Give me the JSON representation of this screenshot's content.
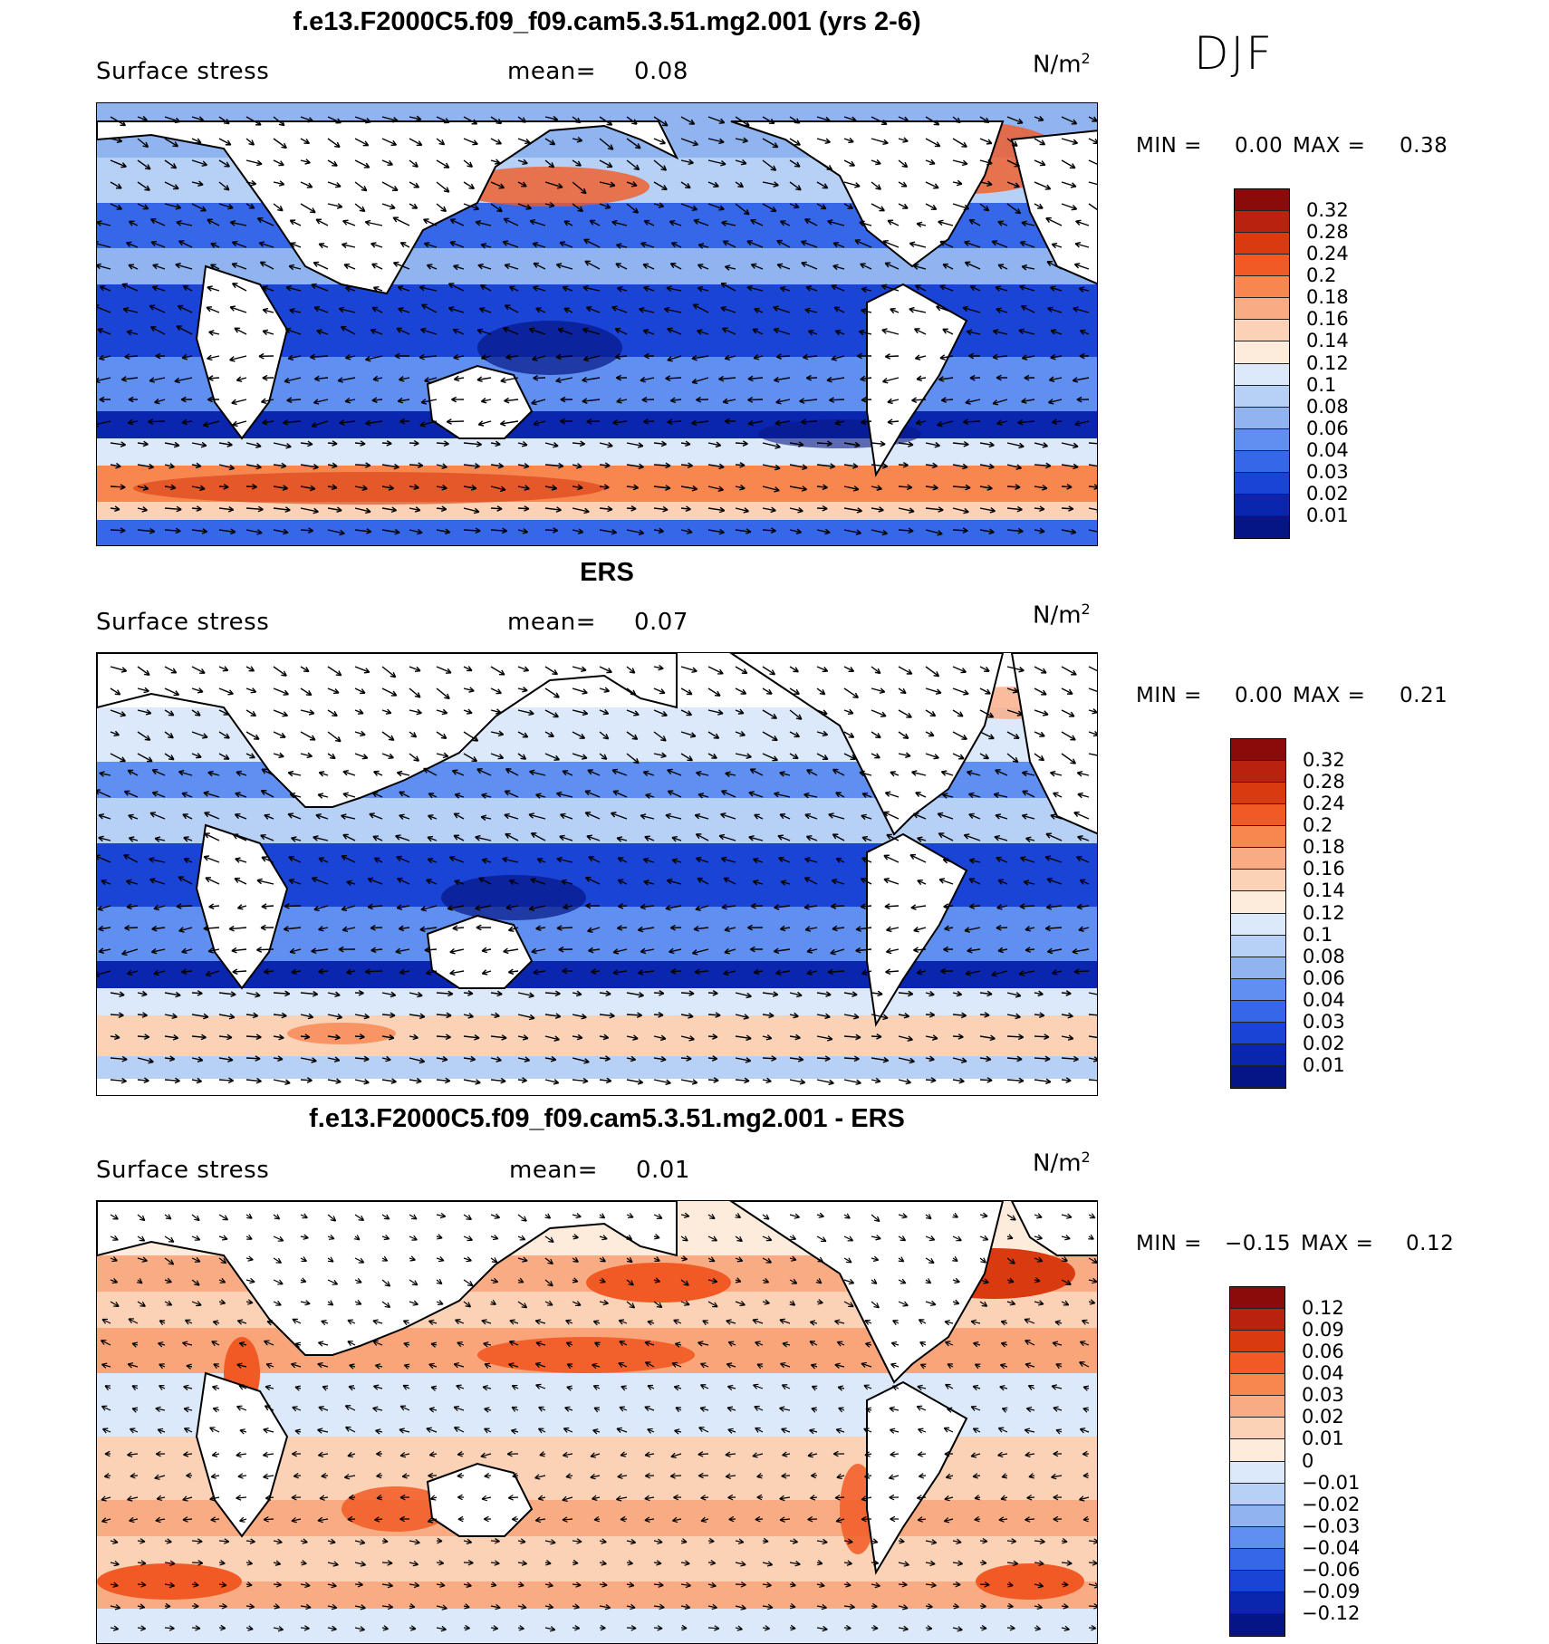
{
  "season": "DJF",
  "panels": [
    {
      "title": "f.e13.F2000C5.f09_f09.cam5.3.51.mg2.001 (yrs 2-6)",
      "variable": "Surface stress",
      "mean_label": "mean=",
      "mean_value": "0.08",
      "units_base": "N/m",
      "units_exp": "2",
      "min_label": "MIN =",
      "min_value": "0.00",
      "max_label": "MAX =",
      "max_value": "0.38",
      "colorbar_labels": [
        "0.32",
        "0.28",
        "0.24",
        "0.2",
        "0.18",
        "0.16",
        "0.14",
        "0.12",
        "0.1",
        "0.08",
        "0.06",
        "0.04",
        "0.03",
        "0.02",
        "0.01"
      ],
      "colorbar_colors": [
        "#8b0a0a",
        "#b8220e",
        "#d93a10",
        "#f15a24",
        "#f7864f",
        "#f9ab83",
        "#fcd2b7",
        "#fdebdc",
        "#dce9fb",
        "#b7d0f6",
        "#8fb4f0",
        "#5f8ff0",
        "#3567e8",
        "#1a44d6",
        "#0a26ae",
        "#061584"
      ]
    },
    {
      "title": "ERS",
      "variable": "Surface stress",
      "mean_label": "mean=",
      "mean_value": "0.07",
      "units_base": "N/m",
      "units_exp": "2",
      "min_label": "MIN =",
      "min_value": "0.00",
      "max_label": "MAX =",
      "max_value": "0.21",
      "colorbar_labels": [
        "0.32",
        "0.28",
        "0.24",
        "0.2",
        "0.18",
        "0.16",
        "0.14",
        "0.12",
        "0.1",
        "0.08",
        "0.06",
        "0.04",
        "0.03",
        "0.02",
        "0.01"
      ],
      "colorbar_colors": [
        "#8b0a0a",
        "#b8220e",
        "#d93a10",
        "#f15a24",
        "#f7864f",
        "#f9ab83",
        "#fcd2b7",
        "#fdebdc",
        "#dce9fb",
        "#b7d0f6",
        "#8fb4f0",
        "#5f8ff0",
        "#3567e8",
        "#1a44d6",
        "#0a26ae",
        "#061584"
      ]
    },
    {
      "title": "f.e13.F2000C5.f09_f09.cam5.3.51.mg2.001 - ERS",
      "variable": "Surface stress",
      "mean_label": "mean=",
      "mean_value": "0.01",
      "units_base": "N/m",
      "units_exp": "2",
      "min_label": "MIN =",
      "min_value": "−0.15",
      "max_label": "MAX =",
      "max_value": "0.12",
      "colorbar_labels": [
        "0.12",
        "0.09",
        "0.06",
        "0.04",
        "0.03",
        "0.02",
        "0.01",
        "0",
        "−0.01",
        "−0.02",
        "−0.03",
        "−0.04",
        "−0.06",
        "−0.09",
        "−0.12"
      ],
      "colorbar_colors": [
        "#8b0a0a",
        "#b8220e",
        "#d93a10",
        "#f15a24",
        "#f7864f",
        "#f9ab83",
        "#fcd2b7",
        "#fdebdc",
        "#dce9fb",
        "#b7d0f6",
        "#8fb4f0",
        "#5f8ff0",
        "#3567e8",
        "#1a44d6",
        "#0a26ae",
        "#061584"
      ]
    }
  ],
  "chart_data": [
    {
      "type": "heatmap",
      "title": "f.e13.F2000C5.f09_f09.cam5.3.51.mg2.001 (yrs 2-6)",
      "subtitle": "Surface stress",
      "units": "N/m2",
      "mean": 0.08,
      "min": 0.0,
      "max": 0.38,
      "contour_levels": [
        0.01,
        0.02,
        0.03,
        0.04,
        0.06,
        0.08,
        0.1,
        0.12,
        0.14,
        0.16,
        0.18,
        0.2,
        0.24,
        0.28,
        0.32
      ]
    },
    {
      "type": "heatmap",
      "title": "ERS",
      "subtitle": "Surface stress",
      "units": "N/m2",
      "mean": 0.07,
      "min": 0.0,
      "max": 0.21,
      "contour_levels": [
        0.01,
        0.02,
        0.03,
        0.04,
        0.06,
        0.08,
        0.1,
        0.12,
        0.14,
        0.16,
        0.18,
        0.2,
        0.24,
        0.28,
        0.32
      ]
    },
    {
      "type": "heatmap",
      "title": "f.e13.F2000C5.f09_f09.cam5.3.51.mg2.001 - ERS",
      "subtitle": "Surface stress",
      "units": "N/m2",
      "mean": 0.01,
      "min": -0.15,
      "max": 0.12,
      "contour_levels": [
        -0.12,
        -0.09,
        -0.06,
        -0.04,
        -0.03,
        -0.02,
        -0.01,
        0,
        0.01,
        0.02,
        0.03,
        0.04,
        0.06,
        0.09,
        0.12
      ]
    }
  ]
}
